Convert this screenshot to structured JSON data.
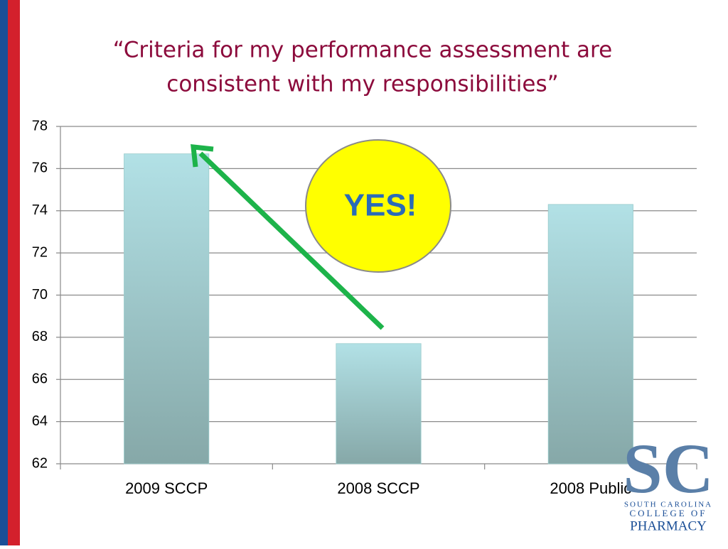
{
  "chart_data": {
    "type": "bar",
    "title": "“Criteria for my performance assessment are consistent with my responsibilities”",
    "title_lines": [
      "“Criteria for my performance assessment are",
      "consistent with my responsibilities”"
    ],
    "categories": [
      "2009 SCCP",
      "2008 SCCP",
      "2008 Public"
    ],
    "values": [
      76.7,
      67.7,
      74.3
    ],
    "color": "#b0dfe4",
    "ylim": [
      62,
      78
    ],
    "yticks": [
      62,
      64,
      66,
      68,
      70,
      72,
      74,
      76,
      78
    ],
    "grid": true,
    "annotations": [
      "YES!"
    ]
  },
  "logo": {
    "mark": "SC",
    "line1": "SOUTH CAROLINA",
    "line2": "COLLEGE OF",
    "line3": "PHARMACY"
  }
}
